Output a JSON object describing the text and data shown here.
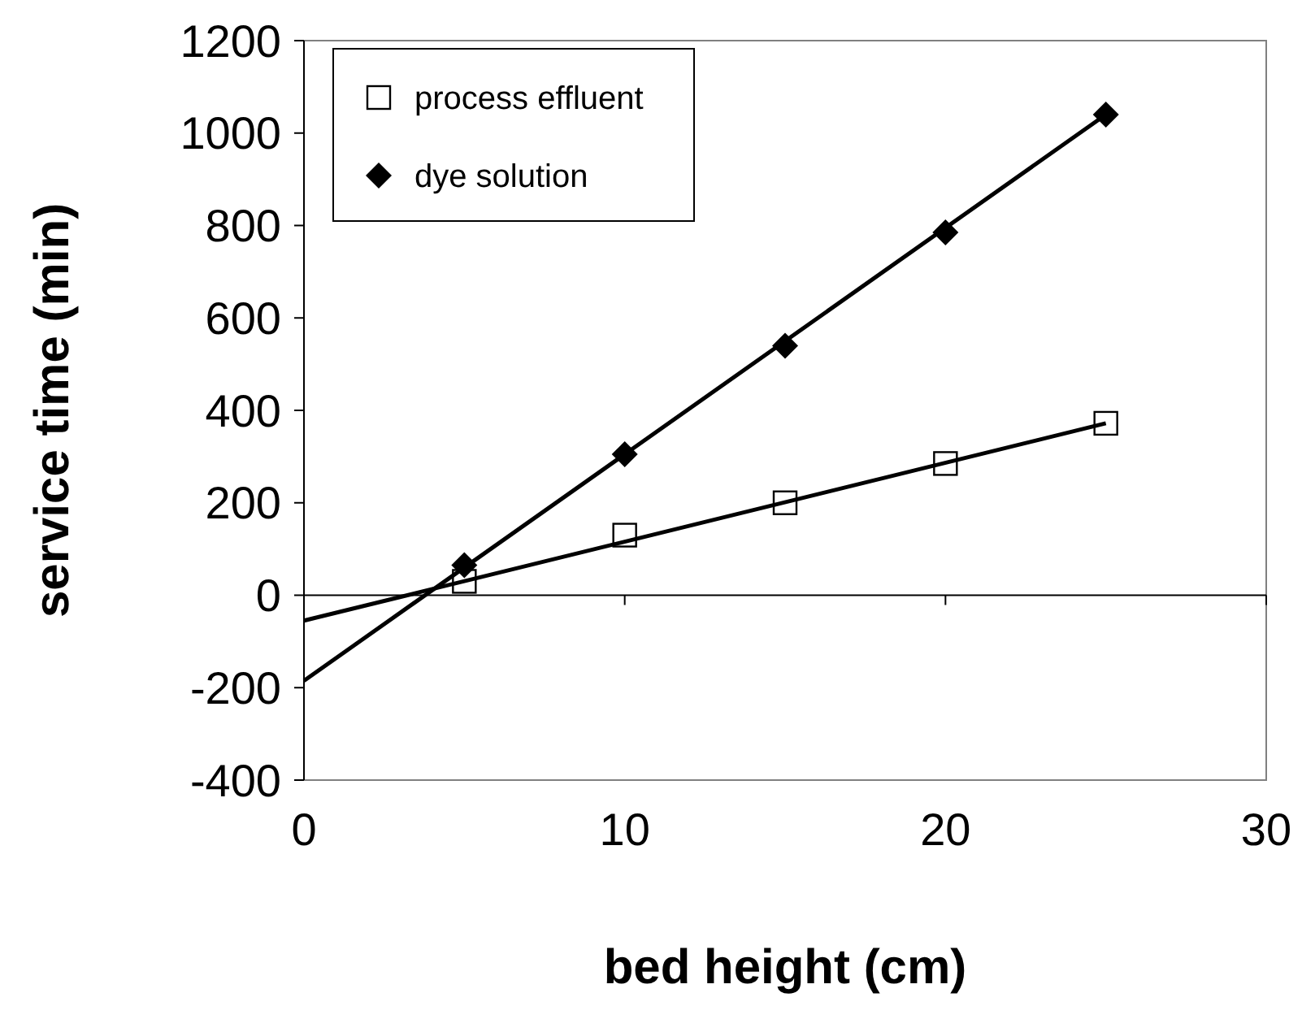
{
  "chart_data": {
    "type": "scatter",
    "xlabel": "bed height (cm)",
    "ylabel": "service time (min)",
    "xlim": [
      0,
      30
    ],
    "xticks": [
      0,
      10,
      20,
      30
    ],
    "ylim": [
      -400,
      1200
    ],
    "yticks": [
      -400,
      -200,
      0,
      200,
      400,
      600,
      800,
      1000,
      1200
    ],
    "grid": false,
    "legend": "top left",
    "ref_lines": [
      {
        "axis": "y",
        "value": 0,
        "color": "#000000"
      }
    ],
    "series": [
      {
        "name": "process effluent",
        "marker": "square",
        "color": "#000000",
        "x": [
          5,
          10,
          15,
          20,
          25
        ],
        "values": [
          30,
          130,
          200,
          285,
          372
        ]
      },
      {
        "name": "dye solution",
        "marker": "diamond",
        "color": "#000000",
        "x": [
          5,
          10,
          15,
          20,
          25
        ],
        "values": [
          65,
          305,
          540,
          785,
          1040
        ]
      },
      {
        "type": "line",
        "marker": "none",
        "color": "#000000",
        "x": [
          0,
          25
        ],
        "values": [
          -55,
          372
        ]
      },
      {
        "type": "line",
        "marker": "none",
        "color": "#000000",
        "x": [
          0,
          25
        ],
        "values": [
          -185,
          1040
        ]
      }
    ]
  }
}
